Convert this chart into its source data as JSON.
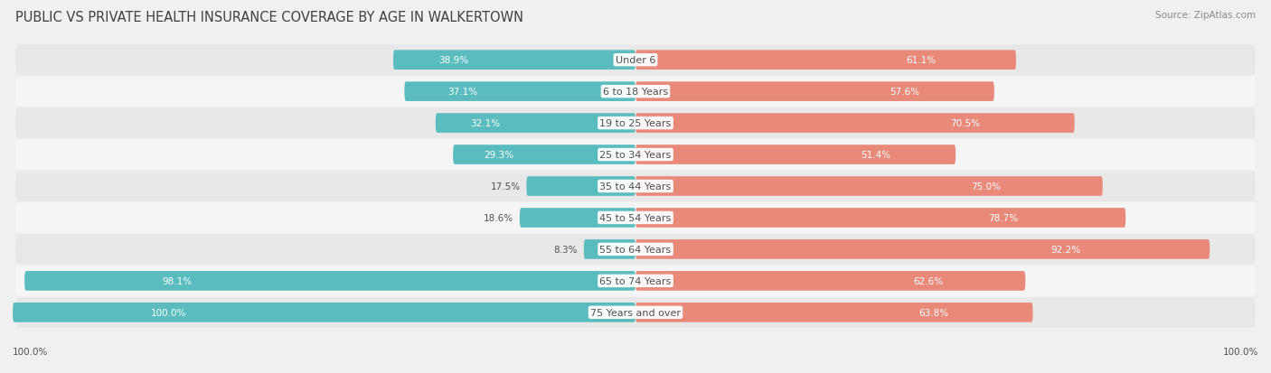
{
  "title": "PUBLIC VS PRIVATE HEALTH INSURANCE COVERAGE BY AGE IN WALKERTOWN",
  "source": "Source: ZipAtlas.com",
  "categories": [
    "Under 6",
    "6 to 18 Years",
    "19 to 25 Years",
    "25 to 34 Years",
    "35 to 44 Years",
    "45 to 54 Years",
    "55 to 64 Years",
    "65 to 74 Years",
    "75 Years and over"
  ],
  "public_values": [
    38.9,
    37.1,
    32.1,
    29.3,
    17.5,
    18.6,
    8.3,
    98.1,
    100.0
  ],
  "private_values": [
    61.1,
    57.6,
    70.5,
    51.4,
    75.0,
    78.7,
    92.2,
    62.6,
    63.8
  ],
  "public_color": "#5bbcbf",
  "private_color": "#e8897a",
  "bg_color": "#f0f0f0",
  "row_bg_even": "#e8e8e8",
  "row_bg_odd": "#f5f5f5",
  "title_color": "#404040",
  "label_color": "#505050",
  "value_color_inside": "#ffffff",
  "value_color_outside": "#505050",
  "max_val": 100.0,
  "bar_height": 0.62,
  "title_fontsize": 10.5,
  "label_fontsize": 8,
  "value_fontsize": 7.5,
  "source_fontsize": 7.5,
  "legend_fontsize": 8
}
